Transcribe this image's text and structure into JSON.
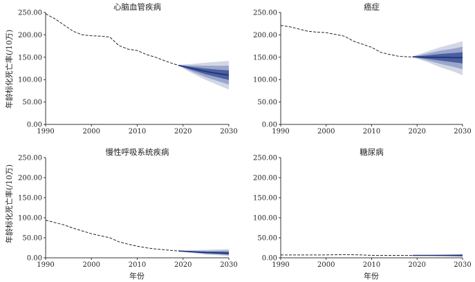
{
  "figure": {
    "ylabel": "年龄标化死亡率(/10万)",
    "xlabel": "年份"
  },
  "colors": {
    "history_line": "#222222",
    "projection_line": "#1d2f78",
    "band_inner": "#4a5f9e",
    "band_mid": "#9aa6cc",
    "band_outer": "#d2d7e6",
    "axis": "#333333"
  },
  "chart_data": [
    {
      "type": "line",
      "title": "心脑血管疾病",
      "xlim": [
        1990,
        2030
      ],
      "ylim": [
        0,
        250
      ],
      "x_ticks": [
        "1990",
        "2000",
        "2010",
        "2020",
        "2030"
      ],
      "y_ticks": [
        "0.00",
        "50.00",
        "100.00",
        "150.00",
        "200.00",
        "250.00"
      ],
      "history": {
        "x": [
          1990,
          1992,
          1994,
          1996,
          1998,
          2000,
          2002,
          2004,
          2006,
          2008,
          2010,
          2012,
          2014,
          2016,
          2018,
          2019
        ],
        "y": [
          247,
          236,
          222,
          208,
          200,
          198,
          197,
          195,
          176,
          168,
          165,
          156,
          150,
          142,
          135,
          132
        ]
      },
      "projection": {
        "x": [
          2019,
          2022,
          2025,
          2028,
          2030
        ],
        "y": [
          132,
          125,
          118,
          113,
          110
        ],
        "band_upper": [
          133,
          135,
          138,
          140,
          142
        ],
        "band_lower": [
          131,
          114,
          99,
          86,
          78
        ]
      }
    },
    {
      "type": "line",
      "title": "癌症",
      "xlim": [
        1990,
        2030
      ],
      "ylim": [
        0,
        250
      ],
      "x_ticks": [
        "1990",
        "2000",
        "2010",
        "2020",
        "2030"
      ],
      "y_ticks": [
        "0.00",
        "50.00",
        "100.00",
        "150.00",
        "200.00",
        "250.00"
      ],
      "history": {
        "x": [
          1990,
          1992,
          1994,
          1996,
          1998,
          2000,
          2002,
          2004,
          2006,
          2008,
          2010,
          2012,
          2014,
          2016,
          2018,
          2019
        ],
        "y": [
          221,
          218,
          213,
          208,
          206,
          205,
          201,
          197,
          186,
          179,
          172,
          161,
          156,
          152,
          151,
          151
        ]
      },
      "projection": {
        "x": [
          2019,
          2022,
          2025,
          2028,
          2030
        ],
        "y": [
          151,
          150,
          150,
          149,
          149
        ],
        "band_upper": [
          152,
          162,
          172,
          180,
          186
        ],
        "band_lower": [
          150,
          140,
          128,
          118,
          110
        ]
      }
    },
    {
      "type": "line",
      "title": "慢性呼吸系统疾病",
      "xlim": [
        1990,
        2030
      ],
      "ylim": [
        0,
        250
      ],
      "x_ticks": [
        "1990",
        "2000",
        "2010",
        "2020",
        "2030"
      ],
      "y_ticks": [
        "0.00",
        "50.00",
        "100.00",
        "150.00",
        "200.00",
        "250.00"
      ],
      "history": {
        "x": [
          1990,
          1992,
          1994,
          1996,
          1998,
          2000,
          2002,
          2004,
          2006,
          2008,
          2010,
          2012,
          2014,
          2016,
          2018,
          2019
        ],
        "y": [
          94,
          88,
          82,
          74,
          67,
          60,
          55,
          50,
          40,
          34,
          29,
          25,
          22,
          20,
          18,
          17
        ]
      },
      "projection": {
        "x": [
          2019,
          2022,
          2025,
          2028,
          2030
        ],
        "y": [
          17,
          15,
          13,
          12,
          11
        ],
        "band_upper": [
          18,
          19,
          20,
          21,
          22
        ],
        "band_lower": [
          16,
          12,
          8,
          6,
          4
        ]
      }
    },
    {
      "type": "line",
      "title": "糖尿病",
      "xlim": [
        1990,
        2030
      ],
      "ylim": [
        0,
        250
      ],
      "x_ticks": [
        "1990",
        "2000",
        "2010",
        "2020",
        "2030"
      ],
      "y_ticks": [
        "0.00",
        "50.00",
        "100.00",
        "150.00",
        "200.00",
        "250.00"
      ],
      "history": {
        "x": [
          1990,
          1994,
          1998,
          2002,
          2004,
          2006,
          2008,
          2010,
          2014,
          2018,
          2019
        ],
        "y": [
          7,
          7,
          7,
          7.5,
          8,
          7.5,
          7,
          6,
          6,
          6,
          6
        ]
      },
      "projection": {
        "x": [
          2019,
          2022,
          2025,
          2028,
          2030
        ],
        "y": [
          6,
          6,
          6,
          6,
          6
        ],
        "band_upper": [
          6.5,
          7,
          8,
          9,
          10
        ],
        "band_lower": [
          5.5,
          5,
          4,
          3,
          2
        ]
      }
    }
  ]
}
